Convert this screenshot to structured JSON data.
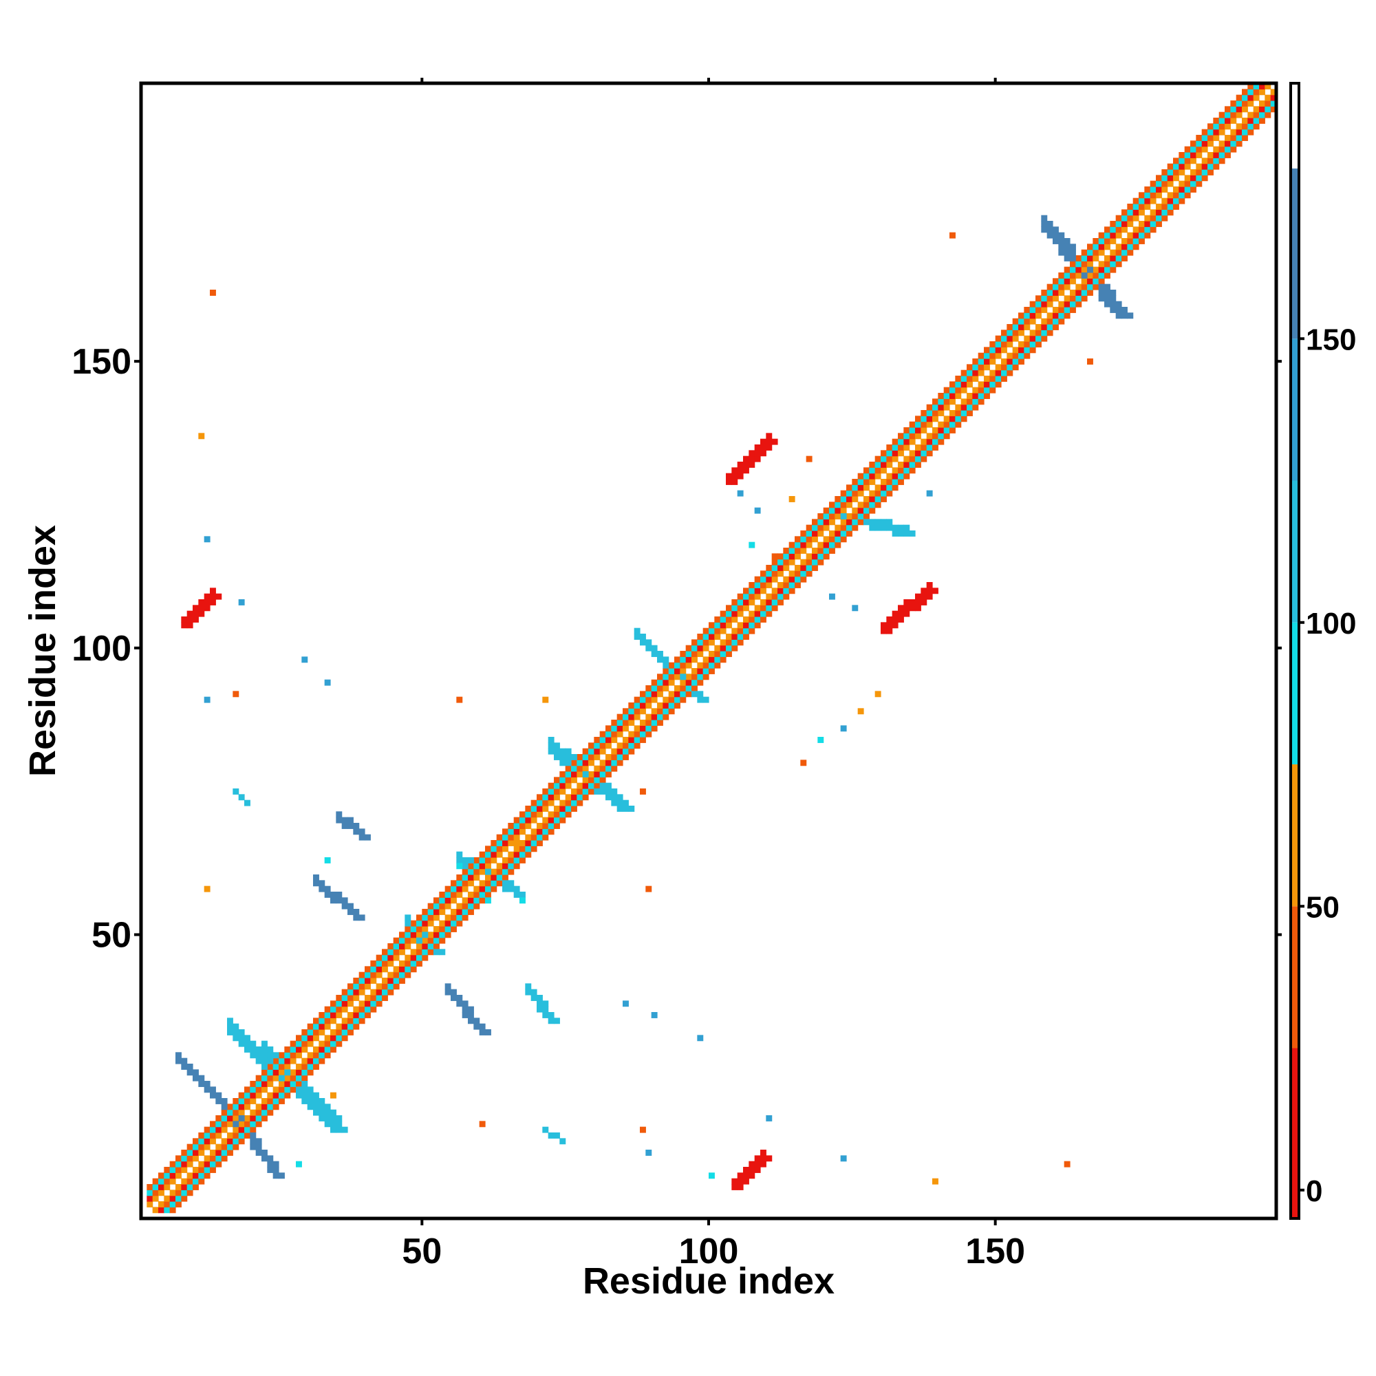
{
  "chart_data": {
    "type": "heatmap",
    "xlabel": "Residue index",
    "ylabel": "Residue index",
    "xlim": [
      1,
      198
    ],
    "ylim": [
      1,
      198
    ],
    "x_ticks": [
      50,
      100,
      150
    ],
    "y_ticks": [
      50,
      100,
      150
    ],
    "grid": false,
    "colorbar": {
      "placement": "right",
      "range": [
        -5,
        195
      ],
      "ticks": [
        0,
        50,
        100,
        150
      ],
      "bands": [
        {
          "from": -5,
          "to": 25,
          "color": "#e8140f"
        },
        {
          "from": 25,
          "to": 50,
          "color": "#f05a0a"
        },
        {
          "from": 50,
          "to": 75,
          "color": "#f5960a"
        },
        {
          "from": 75,
          "to": 100,
          "color": "#14dce6"
        },
        {
          "from": 100,
          "to": 125,
          "color": "#28bedc"
        },
        {
          "from": 125,
          "to": 150,
          "color": "#32a0d2"
        },
        {
          "from": 150,
          "to": 180,
          "color": "#4682b4"
        },
        {
          "from": 180,
          "to": 195,
          "color": "#ffffff"
        }
      ]
    },
    "features": [
      {
        "kind": "diagonal",
        "from": 2,
        "to": 197
      },
      {
        "kind": "strand",
        "from": [
          7,
          28
        ],
        "to": [
          19,
          16
        ],
        "color": "#4682b4",
        "width": 2
      },
      {
        "kind": "strand",
        "from": [
          15,
          20
        ],
        "to": [
          24,
          8
        ],
        "color": "#4682b4",
        "width": 2
      },
      {
        "kind": "strand",
        "from": [
          16,
          33
        ],
        "to": [
          34,
          16
        ],
        "color": "#28bedc",
        "width": 3
      },
      {
        "kind": "strand",
        "from": [
          22,
          30
        ],
        "to": [
          34,
          18
        ],
        "color": "#28bedc",
        "width": 2
      },
      {
        "kind": "strand",
        "from": [
          47,
          51
        ],
        "to": [
          51,
          47
        ],
        "color": "#28bedc",
        "width": 3
      },
      {
        "kind": "strand",
        "from": [
          54,
          40
        ],
        "to": [
          60,
          33
        ],
        "color": "#4682b4",
        "width": 2
      },
      {
        "kind": "strand",
        "from": [
          68,
          40
        ],
        "to": [
          72,
          35
        ],
        "color": "#28bedc",
        "width": 2
      },
      {
        "kind": "strand",
        "from": [
          56,
          63
        ],
        "to": [
          66,
          57
        ],
        "color": "#28bedc",
        "width": 2
      },
      {
        "kind": "strand",
        "from": [
          72,
          82
        ],
        "to": [
          84,
          72
        ],
        "color": "#28bedc",
        "width": 3
      },
      {
        "kind": "strand",
        "from": [
          31,
          59
        ],
        "to": [
          38,
          53
        ],
        "color": "#4682b4",
        "width": 2
      },
      {
        "kind": "strand",
        "from": [
          35,
          70
        ],
        "to": [
          39,
          67
        ],
        "color": "#4682b4",
        "width": 2
      },
      {
        "kind": "strand",
        "from": [
          8,
          104
        ],
        "to": [
          13,
          109
        ],
        "color": "#e8140f",
        "width": 2
      },
      {
        "kind": "strand",
        "from": [
          104,
          6
        ],
        "to": [
          109,
          11
        ],
        "color": "#e8140f",
        "width": 2
      },
      {
        "kind": "strand",
        "from": [
          103,
          129
        ],
        "to": [
          110,
          136
        ],
        "color": "#e8140f",
        "width": 2
      },
      {
        "kind": "strand",
        "from": [
          130,
          103
        ],
        "to": [
          138,
          110
        ],
        "color": "#e8140f",
        "width": 2
      },
      {
        "kind": "strand",
        "from": [
          158,
          173
        ],
        "to": [
          171,
          158
        ],
        "color": "#4682b4",
        "width": 3
      },
      {
        "kind": "strand",
        "from": [
          121,
          123
        ],
        "to": [
          134,
          120
        ],
        "color": "#28bedc",
        "width": 2
      },
      {
        "kind": "strand",
        "from": [
          87,
          102
        ],
        "to": [
          98,
          91
        ],
        "color": "#28bedc",
        "width": 2
      },
      {
        "kind": "strand",
        "from": [
          17,
          75
        ],
        "to": [
          19,
          73
        ],
        "color": "#28bedc",
        "width": 1
      },
      {
        "kind": "strand",
        "from": [
          71,
          16
        ],
        "to": [
          74,
          14
        ],
        "color": "#28bedc",
        "width": 1
      },
      {
        "kind": "dot",
        "at": [
          13,
          162
        ],
        "color": "#f05a0a"
      },
      {
        "kind": "dot",
        "at": [
          11,
          137
        ],
        "color": "#f5960a"
      },
      {
        "kind": "dot",
        "at": [
          12,
          119
        ],
        "color": "#32a0d2"
      },
      {
        "kind": "dot",
        "at": [
          17,
          92
        ],
        "color": "#f05a0a"
      },
      {
        "kind": "dot",
        "at": [
          12,
          91
        ],
        "color": "#32a0d2"
      },
      {
        "kind": "dot",
        "at": [
          18,
          108
        ],
        "color": "#32a0d2"
      },
      {
        "kind": "dot",
        "at": [
          29,
          98
        ],
        "color": "#32a0d2"
      },
      {
        "kind": "dot",
        "at": [
          33,
          94
        ],
        "color": "#32a0d2"
      },
      {
        "kind": "dot",
        "at": [
          56,
          91
        ],
        "color": "#f05a0a"
      },
      {
        "kind": "dot",
        "at": [
          66,
          66
        ],
        "color": "#f5960a"
      },
      {
        "kind": "dot",
        "at": [
          71,
          91
        ],
        "color": "#f5960a"
      },
      {
        "kind": "dot",
        "at": [
          88,
          75
        ],
        "color": "#f05a0a"
      },
      {
        "kind": "dot",
        "at": [
          89,
          58
        ],
        "color": "#f05a0a"
      },
      {
        "kind": "dot",
        "at": [
          88,
          16
        ],
        "color": "#f05a0a"
      },
      {
        "kind": "dot",
        "at": [
          89,
          12
        ],
        "color": "#32a0d2"
      },
      {
        "kind": "dot",
        "at": [
          85,
          38
        ],
        "color": "#32a0d2"
      },
      {
        "kind": "dot",
        "at": [
          90,
          36
        ],
        "color": "#32a0d2"
      },
      {
        "kind": "dot",
        "at": [
          98,
          32
        ],
        "color": "#32a0d2"
      },
      {
        "kind": "dot",
        "at": [
          110,
          18
        ],
        "color": "#32a0d2"
      },
      {
        "kind": "dot",
        "at": [
          100,
          8
        ],
        "color": "#14dce6"
      },
      {
        "kind": "dot",
        "at": [
          117,
          133
        ],
        "color": "#f05a0a"
      },
      {
        "kind": "dot",
        "at": [
          114,
          126
        ],
        "color": "#f5960a"
      },
      {
        "kind": "dot",
        "at": [
          107,
          118
        ],
        "color": "#14dce6"
      },
      {
        "kind": "dot",
        "at": [
          111,
          116
        ],
        "color": "#f05a0a"
      },
      {
        "kind": "dot",
        "at": [
          138,
          127
        ],
        "color": "#32a0d2"
      },
      {
        "kind": "dot",
        "at": [
          142,
          172
        ],
        "color": "#f05a0a"
      },
      {
        "kind": "dot",
        "at": [
          166,
          150
        ],
        "color": "#f05a0a"
      },
      {
        "kind": "dot",
        "at": [
          125,
          107
        ],
        "color": "#32a0d2"
      },
      {
        "kind": "dot",
        "at": [
          121,
          109
        ],
        "color": "#32a0d2"
      },
      {
        "kind": "dot",
        "at": [
          129,
          92
        ],
        "color": "#f5960a"
      },
      {
        "kind": "dot",
        "at": [
          126,
          89
        ],
        "color": "#f5960a"
      },
      {
        "kind": "dot",
        "at": [
          119,
          84
        ],
        "color": "#14dce6"
      },
      {
        "kind": "dot",
        "at": [
          116,
          80
        ],
        "color": "#f05a0a"
      },
      {
        "kind": "dot",
        "at": [
          123,
          86
        ],
        "color": "#32a0d2"
      },
      {
        "kind": "dot",
        "at": [
          139,
          7
        ],
        "color": "#f5960a"
      },
      {
        "kind": "dot",
        "at": [
          162,
          10
        ],
        "color": "#f05a0a"
      },
      {
        "kind": "dot",
        "at": [
          123,
          11
        ],
        "color": "#32a0d2"
      },
      {
        "kind": "dot",
        "at": [
          60,
          17
        ],
        "color": "#f05a0a"
      },
      {
        "kind": "dot",
        "at": [
          56,
          62
        ],
        "color": "#14dce6"
      },
      {
        "kind": "dot",
        "at": [
          67,
          56
        ],
        "color": "#14dce6"
      },
      {
        "kind": "dot",
        "at": [
          61,
          56
        ],
        "color": "#14dce6"
      },
      {
        "kind": "dot",
        "at": [
          34,
          22
        ],
        "color": "#f5960a"
      },
      {
        "kind": "dot",
        "at": [
          28,
          10
        ],
        "color": "#14dce6"
      },
      {
        "kind": "dot",
        "at": [
          12,
          58
        ],
        "color": "#f5960a"
      },
      {
        "kind": "dot",
        "at": [
          33,
          63
        ],
        "color": "#14dce6"
      },
      {
        "kind": "dot",
        "at": [
          105,
          127
        ],
        "color": "#32a0d2"
      },
      {
        "kind": "dot",
        "at": [
          108,
          124
        ],
        "color": "#32a0d2"
      }
    ]
  }
}
